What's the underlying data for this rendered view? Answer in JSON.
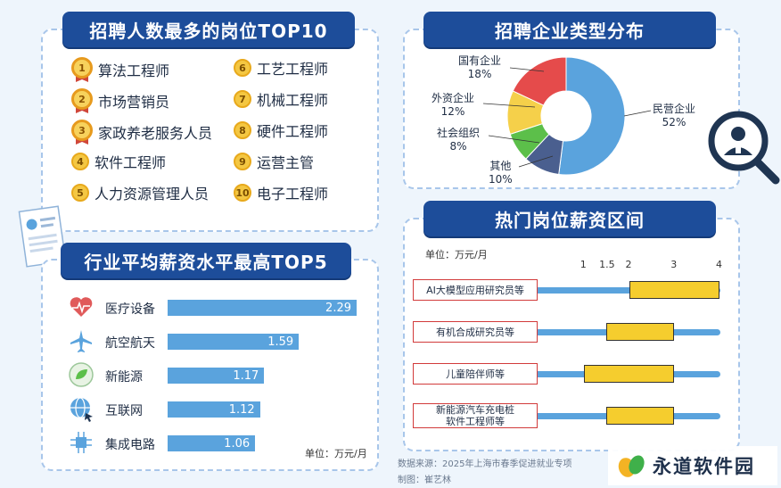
{
  "top10": {
    "title": "招聘人数最多的岗位TOP10",
    "items": [
      {
        "rank": "1",
        "name": "算法工程师"
      },
      {
        "rank": "2",
        "name": "市场营销员"
      },
      {
        "rank": "3",
        "name": "家政养老服务人员"
      },
      {
        "rank": "4",
        "name": "软件工程师"
      },
      {
        "rank": "5",
        "name": "人力资源管理人员"
      },
      {
        "rank": "6",
        "name": "工艺工程师"
      },
      {
        "rank": "7",
        "name": "机械工程师"
      },
      {
        "rank": "8",
        "name": "硬件工程师"
      },
      {
        "rank": "9",
        "name": "运营主管"
      },
      {
        "rank": "10",
        "name": "电子工程师"
      }
    ]
  },
  "salary_top5": {
    "title": "行业平均薪资水平最高TOP5",
    "unit": "单位：万元/月"
  },
  "enterprise": {
    "title": "招聘企业类型分布"
  },
  "hot_jobs": {
    "title": "热门岗位薪资区间",
    "unit": "单位：万元/月"
  },
  "footer": {
    "source": "数据来源：2025年上海市春季促进就业专项",
    "author": "制图：崔艺林"
  },
  "watermark": {
    "text": "永道软件园"
  },
  "colors": {
    "banner": "#1d4d9a",
    "bar": "#5aa3dd",
    "range_fill": "#f5cd2e",
    "accent_red": "#d23b3b"
  },
  "chart_data": [
    {
      "type": "bar",
      "title": "行业平均薪资水平最高TOP5",
      "categories": [
        "医疗设备",
        "航空航天",
        "新能源",
        "互联网",
        "集成电路"
      ],
      "values": [
        2.29,
        1.59,
        1.17,
        1.12,
        1.06
      ],
      "value_labels": [
        "2.29",
        "1.59",
        "1.17",
        "1.12",
        "1.06"
      ],
      "icons": [
        "heart-pulse-icon",
        "airplane-icon",
        "leaf-icon",
        "globe-icon",
        "chip-icon"
      ],
      "unit": "单位：万元/月"
    },
    {
      "type": "pie",
      "title": "招聘企业类型分布",
      "slices": [
        {
          "name": "民营企业",
          "value": 52,
          "label": "52%",
          "color": "#5aa3dd"
        },
        {
          "name": "其他",
          "value": 10,
          "label": "10%",
          "color": "#4a5f8f"
        },
        {
          "name": "社会组织",
          "value": 8,
          "label": "8%",
          "color": "#5cbf4a"
        },
        {
          "name": "外资企业",
          "value": 12,
          "label": "12%",
          "color": "#f5d04a"
        },
        {
          "name": "国有企业",
          "value": 18,
          "label": "18%",
          "color": "#e54b4b"
        }
      ]
    },
    {
      "type": "range",
      "title": "热门岗位薪资区间",
      "unit": "单位：万元/月",
      "ticks": [
        "1",
        "1.5",
        "2",
        "3",
        "4"
      ],
      "tick_values": [
        1,
        1.5,
        2,
        3,
        4
      ],
      "jobs": [
        {
          "name": "AI大模型应用研究员等",
          "low": 2.0,
          "high": 4.0
        },
        {
          "name": "有机合成研究员等",
          "low": 1.5,
          "high": 3.0
        },
        {
          "name": "儿童陪伴师等",
          "low": 1.0,
          "high": 3.0
        },
        {
          "name": "新能源汽车充电桩\n软件工程师等",
          "low": 1.5,
          "high": 3.0
        }
      ]
    }
  ]
}
